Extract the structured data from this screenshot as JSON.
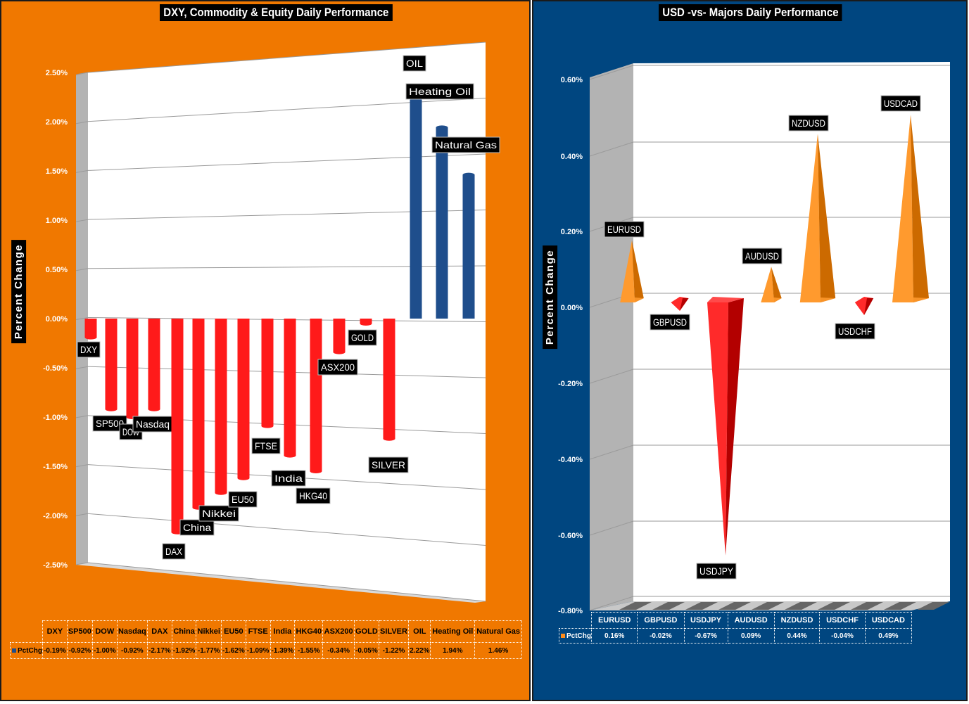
{
  "chart_data": [
    {
      "type": "bar",
      "title": "DXY, Commodity & Equity Daily Performance",
      "ylabel": "Percent Change",
      "ylim": [
        -2.5,
        2.5
      ],
      "yticks": [
        "2.50%",
        "2.00%",
        "1.50%",
        "1.00%",
        "0.50%",
        "0.00%",
        "-0.50%",
        "-1.00%",
        "-1.50%",
        "-2.00%",
        "-2.50%"
      ],
      "categories": [
        "DXY",
        "SP500",
        "DOW",
        "Nasdaq",
        "DAX",
        "China",
        "Nikkei",
        "EU50",
        "FTSE",
        "India",
        "HKG40",
        "ASX200",
        "GOLD",
        "SILVER",
        "OIL",
        "Heating Oil",
        "Natural Gas"
      ],
      "table_headers": [
        "DXY",
        "SP500",
        "DOW",
        "Nasdaq",
        "DAX",
        "China",
        "Nikkei",
        "EU50",
        "FTSE",
        "India",
        "HKG40",
        "ASX200",
        "GOLD",
        "SILVER",
        "OIL",
        "Heating Oil",
        "Natural Gas"
      ],
      "series": [
        {
          "name": "PctChg",
          "values": [
            -0.19,
            -0.92,
            -1.0,
            -0.92,
            -2.17,
            -1.92,
            -1.77,
            -1.62,
            -1.09,
            -1.39,
            -1.55,
            -0.34,
            -0.05,
            -1.22,
            2.22,
            1.94,
            1.46
          ],
          "labels": [
            "-0.19%",
            "-0.92%",
            "-1.00%",
            "-0.92%",
            "-2.17%",
            "-1.92%",
            "-1.77%",
            "-1.62%",
            "-1.09%",
            "-1.39%",
            "-1.55%",
            "-0.34%",
            "-0.05%",
            "-1.22%",
            "2.22%",
            "1.94%",
            "1.46%"
          ]
        }
      ],
      "colors": {
        "positive": "#1f4e8c",
        "negative": "#ff1a1a",
        "background": "#f07800"
      },
      "grid": true,
      "legend": "table-bottom"
    },
    {
      "type": "bar",
      "title": "USD -vs- Majors Daily Performance",
      "ylabel": "Percent Change",
      "ylim": [
        -0.8,
        0.6
      ],
      "yticks": [
        "0.60%",
        "0.40%",
        "0.20%",
        "0.00%",
        "-0.20%",
        "-0.40%",
        "-0.60%",
        "-0.80%"
      ],
      "categories": [
        "EURUSD",
        "GBPUSD",
        "USDJPY",
        "AUDUSD",
        "NZDUSD",
        "USDCHF",
        "USDCAD"
      ],
      "table_headers": [
        "EURUSD",
        "GBPUSD",
        "USDJPY",
        "AUDUSD",
        "NZDUSD",
        "USDCHF",
        "USDCAD"
      ],
      "series": [
        {
          "name": "PctChg",
          "values": [
            0.16,
            -0.02,
            -0.67,
            0.09,
            0.44,
            -0.04,
            0.49
          ],
          "labels": [
            "0.16%",
            "-0.02%",
            "-0.67%",
            "0.09%",
            "0.44%",
            "-0.04%",
            "0.49%"
          ]
        }
      ],
      "colors": {
        "positive": "#ff8c1a",
        "negative": "#ff1a1a",
        "background": "#004680"
      },
      "grid": true,
      "legend": "table-bottom"
    }
  ]
}
